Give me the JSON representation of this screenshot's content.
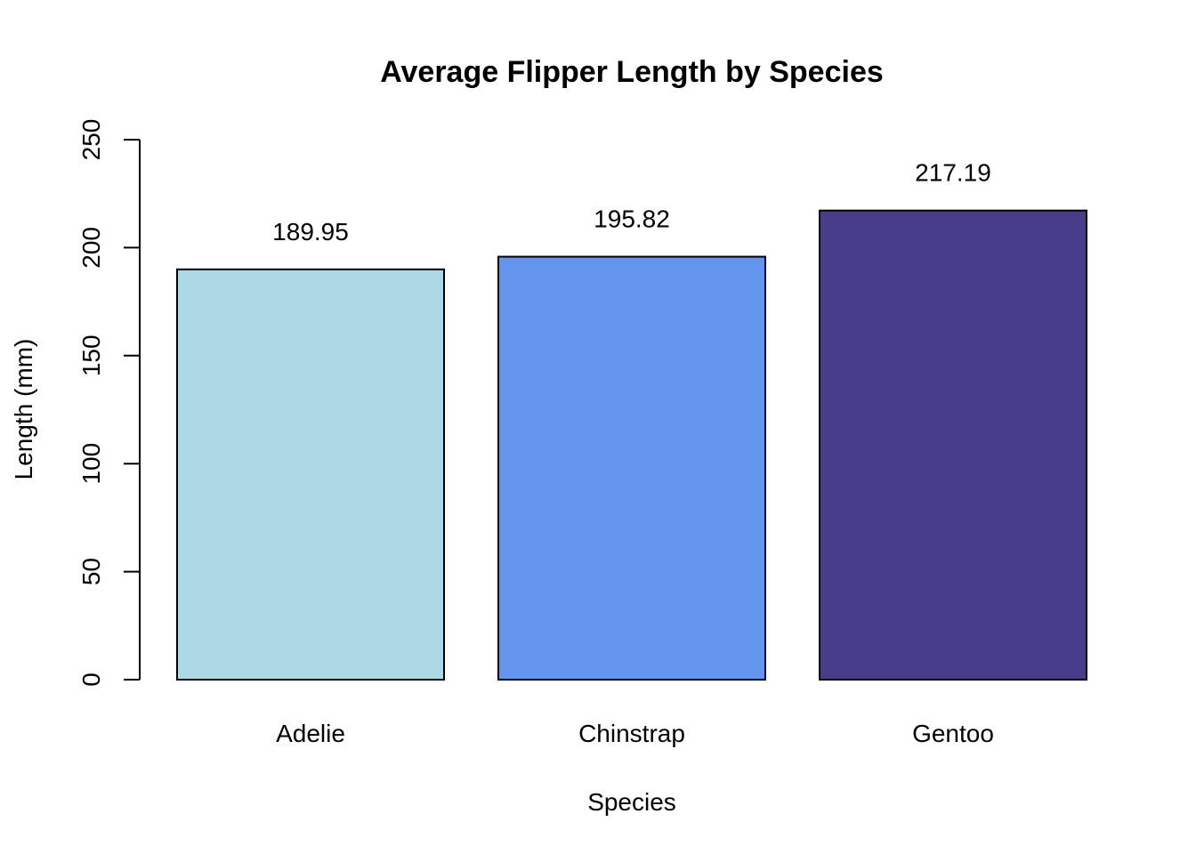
{
  "chart_data": {
    "type": "bar",
    "title": "Average Flipper Length by Species",
    "xlabel": "Species",
    "ylabel": "Length (mm)",
    "categories": [
      "Adelie",
      "Chinstrap",
      "Gentoo"
    ],
    "values": [
      189.95,
      195.82,
      217.19
    ],
    "data_labels": [
      "189.95",
      "195.82",
      "217.19"
    ],
    "colors": [
      "#add8e6",
      "#6495ed",
      "#483d8b"
    ],
    "ylim": [
      0,
      250
    ],
    "yticks": [
      0,
      50,
      100,
      150,
      200,
      250
    ],
    "grid": false,
    "legend": "none"
  }
}
